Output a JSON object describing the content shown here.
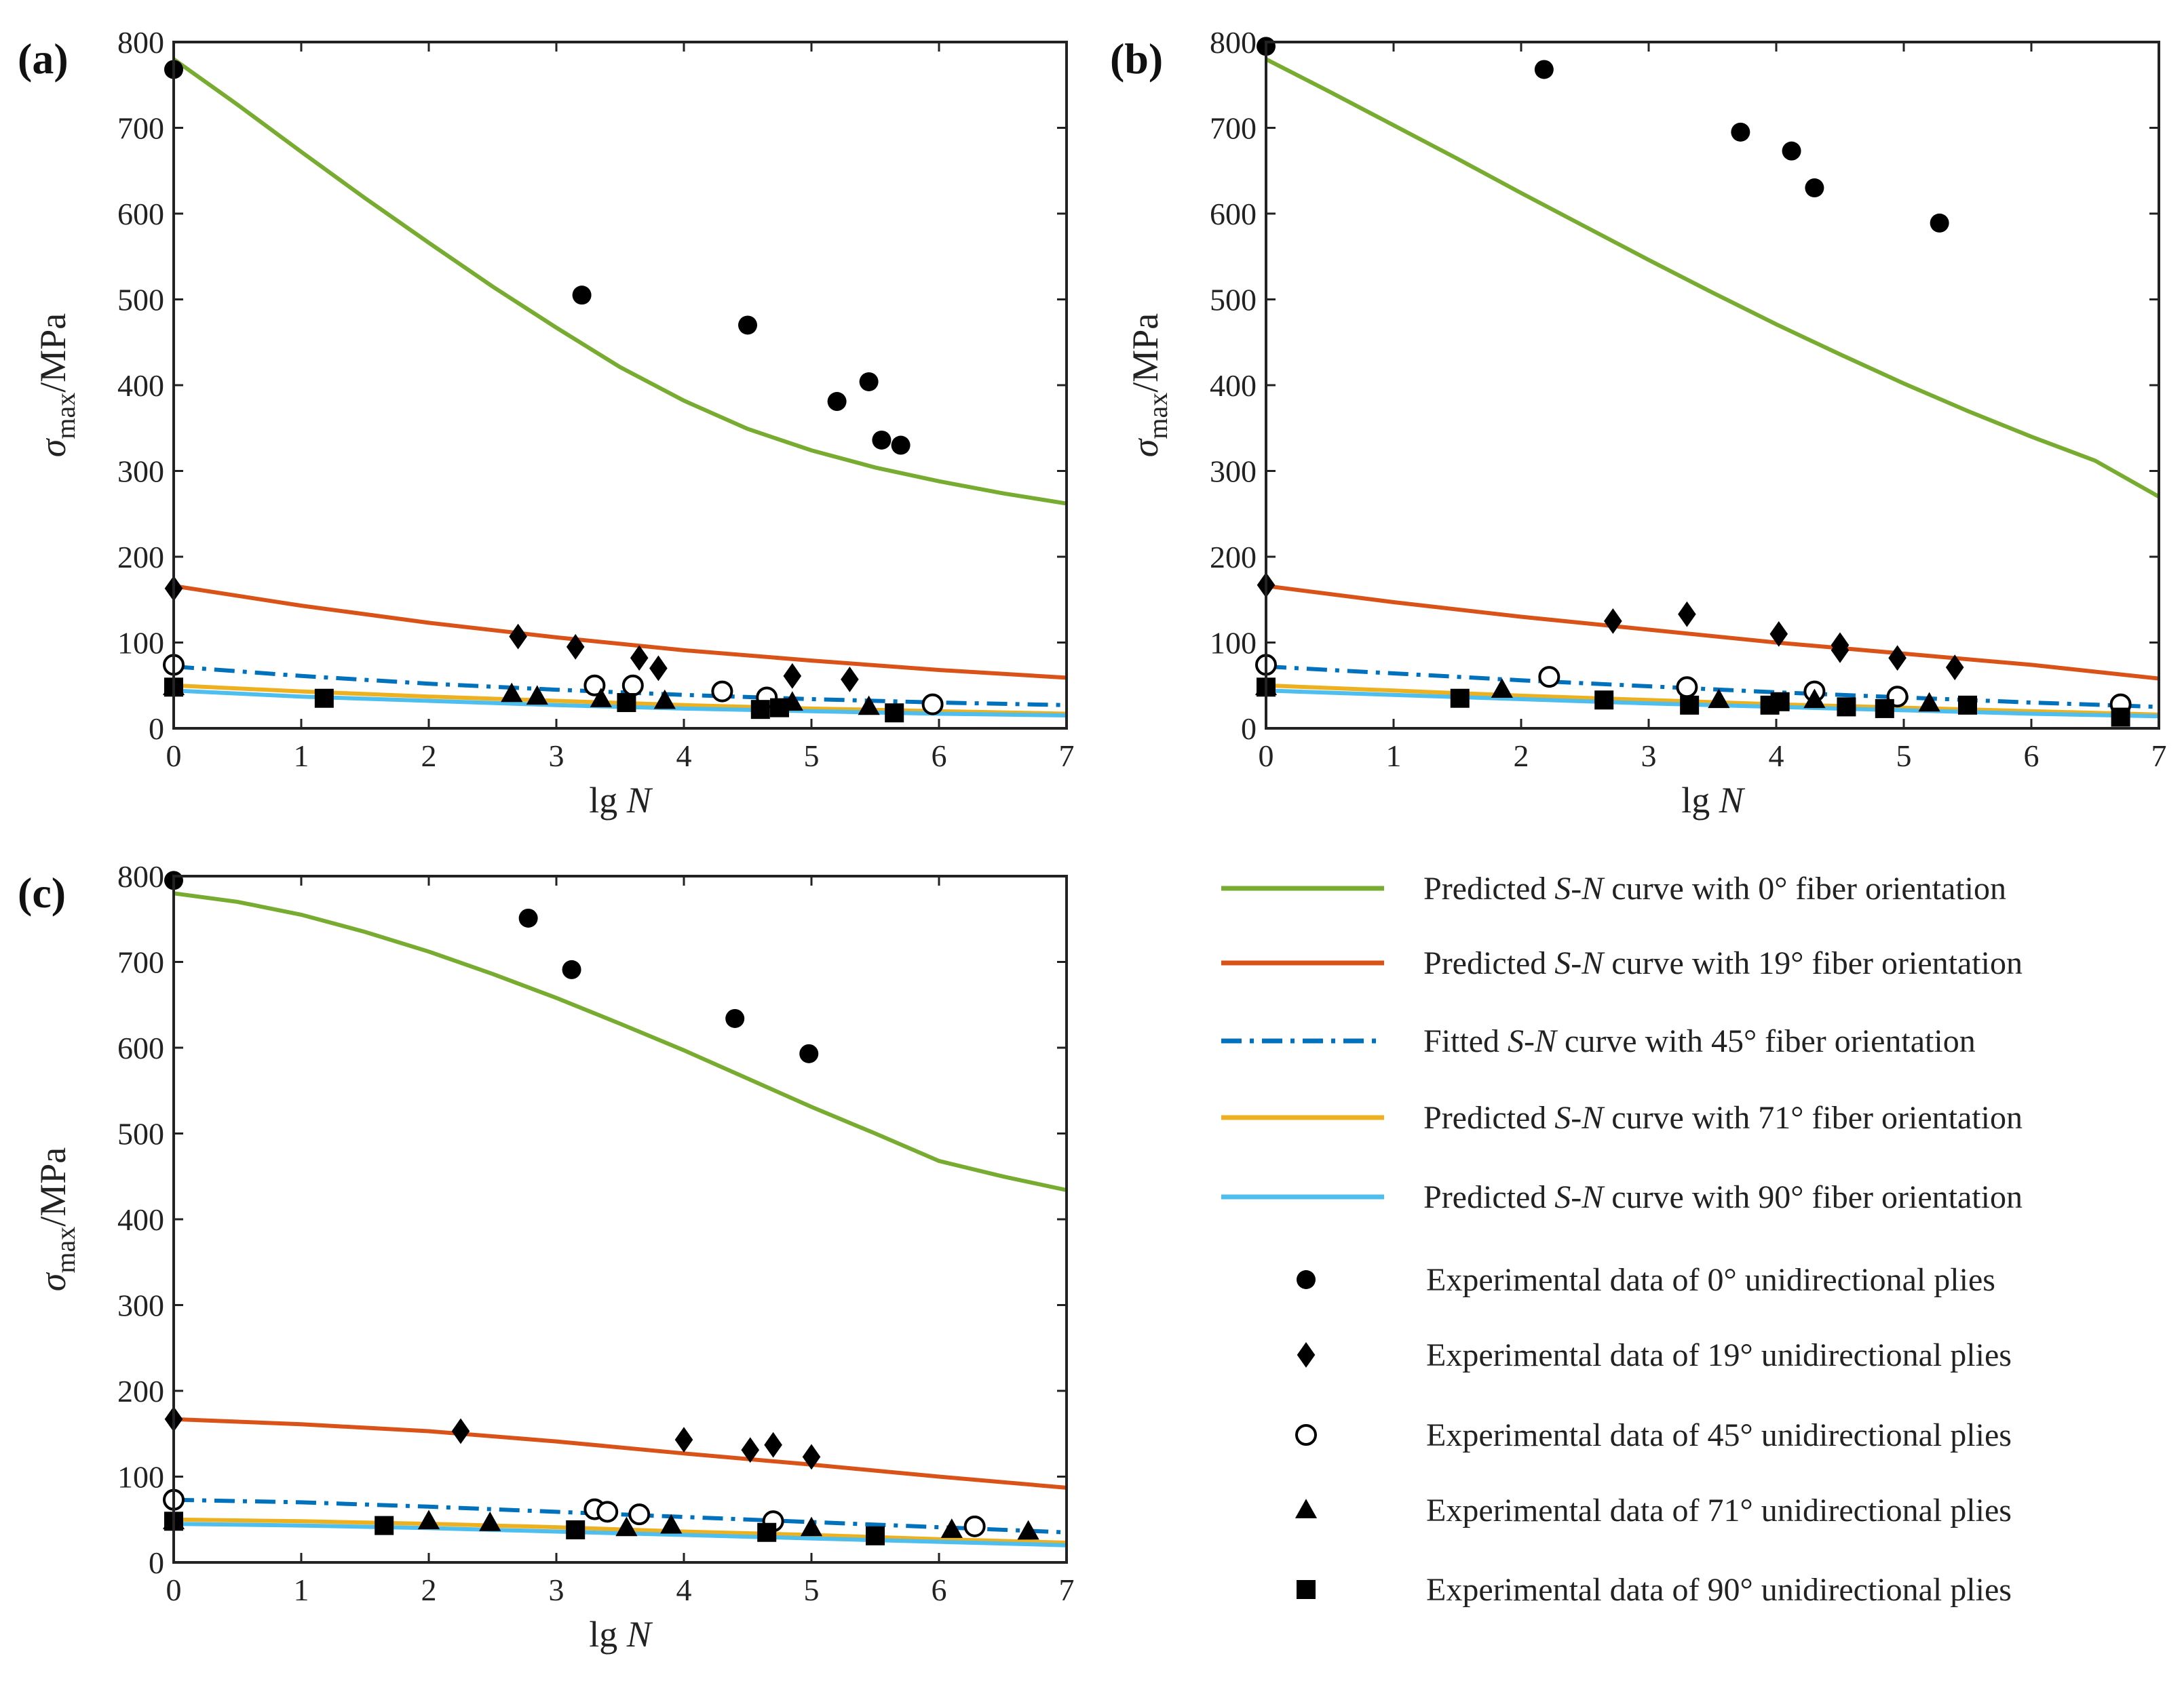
{
  "figure": {
    "legend": [
      {
        "key": "p0",
        "kind": "line",
        "color": "#77ac30",
        "dash": "solid",
        "parts": [
          {
            "t": "Predicted "
          },
          {
            "t": "S",
            "i": true
          },
          {
            "t": "-"
          },
          {
            "t": "N",
            "i": true
          },
          {
            "t": " curve with  0° fiber orientation"
          }
        ]
      },
      {
        "key": "p19",
        "kind": "line",
        "color": "#d95319",
        "dash": "solid",
        "parts": [
          {
            "t": "Predicted "
          },
          {
            "t": "S",
            "i": true
          },
          {
            "t": "-"
          },
          {
            "t": "N",
            "i": true
          },
          {
            "t": " curve with 19° fiber orientation"
          }
        ]
      },
      {
        "key": "p45",
        "kind": "line",
        "color": "#0072bd",
        "dash": "dashdot",
        "parts": [
          {
            "t": "Fitted "
          },
          {
            "t": "S",
            "i": true
          },
          {
            "t": "-"
          },
          {
            "t": "N",
            "i": true
          },
          {
            "t": " curve with 45° fiber orientation"
          }
        ]
      },
      {
        "key": "p71",
        "kind": "line",
        "color": "#edb120",
        "dash": "solid",
        "parts": [
          {
            "t": "Predicted "
          },
          {
            "t": "S",
            "i": true
          },
          {
            "t": "-"
          },
          {
            "t": "N",
            "i": true
          },
          {
            "t": " curve with 71° fiber orientation"
          }
        ]
      },
      {
        "key": "p90",
        "kind": "line",
        "color": "#4dbeee",
        "dash": "solid",
        "parts": [
          {
            "t": "Predicted "
          },
          {
            "t": "S",
            "i": true
          },
          {
            "t": "-"
          },
          {
            "t": "N",
            "i": true
          },
          {
            "t": " curve with 90° fiber orientation"
          }
        ]
      },
      {
        "key": "e0",
        "kind": "marker",
        "marker": "circle",
        "parts": [
          {
            "t": "Experimental data of   0° unidirectional plies"
          }
        ]
      },
      {
        "key": "e19",
        "kind": "marker",
        "marker": "diamond",
        "parts": [
          {
            "t": "Experimental data of  19° unidirectional plies"
          }
        ]
      },
      {
        "key": "e45",
        "kind": "marker",
        "marker": "open-circle",
        "parts": [
          {
            "t": "Experimental data of  45° unidirectional plies"
          }
        ]
      },
      {
        "key": "e71",
        "kind": "marker",
        "marker": "triangle",
        "parts": [
          {
            "t": "Experimental data of  71° unidirectional plies"
          }
        ]
      },
      {
        "key": "e90",
        "kind": "marker",
        "marker": "square",
        "parts": [
          {
            "t": "Experimental data of  90° unidirectional plies"
          }
        ]
      }
    ]
  },
  "chart_data": [
    {
      "panel": "(a)",
      "type": "line",
      "xlabel": {
        "pre": "lg ",
        "italic": "N"
      },
      "ylabel": {
        "sym": "σ",
        "sub": "max",
        "unit": "/MPa"
      },
      "xlim": [
        0,
        7
      ],
      "ylim": [
        0,
        800
      ],
      "xticks": [
        0,
        1,
        2,
        3,
        4,
        5,
        6,
        7
      ],
      "yticks": [
        0,
        100,
        200,
        300,
        400,
        500,
        600,
        700,
        800
      ],
      "curves": [
        {
          "key": "p0",
          "x": [
            0,
            0.5,
            1,
            1.5,
            2,
            2.5,
            3,
            3.5,
            4,
            4.5,
            5,
            5.5,
            6,
            6.5,
            7
          ],
          "y": [
            780,
            727,
            672,
            618,
            566,
            515,
            467,
            421,
            382,
            349,
            324,
            304,
            288,
            274,
            262
          ]
        },
        {
          "key": "p19",
          "x": [
            0,
            1,
            2,
            3,
            4,
            5,
            6,
            7
          ],
          "y": [
            166,
            143,
            123,
            106,
            91,
            79,
            68,
            59
          ]
        },
        {
          "key": "p45",
          "x": [
            0,
            1,
            2,
            3,
            4,
            5,
            6,
            7
          ],
          "y": [
            72,
            61,
            52,
            45,
            39,
            34,
            30,
            27
          ]
        },
        {
          "key": "p71",
          "x": [
            0,
            1,
            2,
            3,
            4,
            5,
            6,
            7
          ],
          "y": [
            50,
            43,
            37,
            32,
            27,
            23,
            20,
            17
          ]
        },
        {
          "key": "p90",
          "x": [
            0,
            1,
            2,
            3,
            4,
            5,
            6,
            7
          ],
          "y": [
            44,
            37,
            32,
            27,
            23,
            20,
            17,
            15
          ]
        }
      ],
      "points": [
        {
          "key": "e0",
          "x": [
            0,
            3.2,
            4.5,
            5.2,
            5.45,
            5.55,
            5.7
          ],
          "y": [
            768,
            505,
            470,
            381,
            404,
            336,
            330
          ]
        },
        {
          "key": "e19",
          "x": [
            0,
            2.7,
            3.15,
            3.65,
            3.8,
            4.85,
            5.3
          ],
          "y": [
            163,
            107,
            95,
            82,
            70,
            61,
            57
          ]
        },
        {
          "key": "e45",
          "x": [
            0,
            3.3,
            3.6,
            4.3,
            4.65,
            5.95
          ],
          "y": [
            74,
            50,
            50,
            43,
            36,
            28
          ]
        },
        {
          "key": "e71",
          "x": [
            0,
            2.65,
            2.85,
            3.35,
            3.85,
            4.85,
            5.45
          ],
          "y": [
            48,
            40,
            37,
            34,
            32,
            30,
            25
          ]
        },
        {
          "key": "e90",
          "x": [
            0,
            1.18,
            3.55,
            4.6,
            4.75,
            5.65
          ],
          "y": [
            48,
            35,
            30,
            22,
            24,
            18
          ]
        }
      ]
    },
    {
      "panel": "(b)",
      "type": "line",
      "xlabel": {
        "pre": "lg ",
        "italic": "N"
      },
      "ylabel": {
        "sym": "σ",
        "sub": "max",
        "unit": "/MPa"
      },
      "xlim": [
        0,
        7
      ],
      "ylim": [
        0,
        800
      ],
      "xticks": [
        0,
        1,
        2,
        3,
        4,
        5,
        6,
        7
      ],
      "yticks": [
        0,
        100,
        200,
        300,
        400,
        500,
        600,
        700,
        800
      ],
      "curves": [
        {
          "key": "p0",
          "x": [
            0,
            0.5,
            1,
            1.5,
            2,
            2.5,
            3,
            3.5,
            4,
            4.5,
            5,
            5.5,
            6,
            6.5,
            7
          ],
          "y": [
            780,
            742,
            703,
            664,
            624,
            585,
            546,
            508,
            471,
            436,
            402,
            370,
            340,
            312,
            270
          ]
        },
        {
          "key": "p19",
          "x": [
            0,
            1,
            2,
            3,
            4,
            5,
            6,
            7
          ],
          "y": [
            166,
            147,
            130,
            115,
            100,
            87,
            74,
            58
          ]
        },
        {
          "key": "p45",
          "x": [
            0,
            1,
            2,
            3,
            4,
            5,
            6,
            7
          ],
          "y": [
            72,
            64,
            56,
            49,
            42,
            36,
            30,
            25
          ]
        },
        {
          "key": "p71",
          "x": [
            0,
            1,
            2,
            3,
            4,
            5,
            6,
            7
          ],
          "y": [
            50,
            44,
            38,
            33,
            28,
            24,
            20,
            16
          ]
        },
        {
          "key": "p90",
          "x": [
            0,
            1,
            2,
            3,
            4,
            5,
            6,
            7
          ],
          "y": [
            44,
            39,
            34,
            29,
            25,
            21,
            17,
            14
          ]
        }
      ],
      "points": [
        {
          "key": "e0",
          "x": [
            0,
            2.18,
            3.72,
            4.12,
            4.3,
            5.28
          ],
          "y": [
            795,
            768,
            695,
            673,
            630,
            589
          ]
        },
        {
          "key": "e19",
          "x": [
            0,
            2.72,
            3.3,
            4.02,
            4.5,
            4.5,
            4.95,
            5.4
          ],
          "y": [
            167,
            125,
            133,
            110,
            97,
            91,
            82,
            71
          ]
        },
        {
          "key": "e45",
          "x": [
            0,
            2.22,
            3.3,
            4.3,
            4.95,
            6.7
          ],
          "y": [
            74,
            60,
            48,
            43,
            37,
            28
          ]
        },
        {
          "key": "e71",
          "x": [
            0,
            1.85,
            3.55,
            4.3,
            5.2
          ],
          "y": [
            48,
            45,
            33,
            33,
            29
          ]
        },
        {
          "key": "e90",
          "x": [
            0,
            1.52,
            2.65,
            3.32,
            3.95,
            4.03,
            4.55,
            4.85,
            5.5,
            6.7
          ],
          "y": [
            48,
            35,
            33,
            27,
            27,
            31,
            25,
            23,
            27,
            13
          ]
        }
      ]
    },
    {
      "panel": "(c)",
      "type": "line",
      "xlabel": {
        "pre": "lg ",
        "italic": "N"
      },
      "ylabel": {
        "sym": "σ",
        "sub": "max",
        "unit": "/MPa"
      },
      "xlim": [
        0,
        7
      ],
      "ylim": [
        0,
        800
      ],
      "xticks": [
        0,
        1,
        2,
        3,
        4,
        5,
        6,
        7
      ],
      "yticks": [
        0,
        100,
        200,
        300,
        400,
        500,
        600,
        700,
        800
      ],
      "curves": [
        {
          "key": "p0",
          "x": [
            0,
            0.5,
            1,
            1.5,
            2,
            2.5,
            3,
            3.5,
            4,
            4.5,
            5,
            5.5,
            6,
            6.5,
            7
          ],
          "y": [
            780,
            770,
            755,
            735,
            712,
            686,
            658,
            628,
            597,
            564,
            531,
            500,
            468,
            450,
            434
          ]
        },
        {
          "key": "p19",
          "x": [
            0,
            1,
            2,
            3,
            4,
            5,
            6,
            7
          ],
          "y": [
            167,
            161,
            153,
            141,
            127,
            114,
            100,
            87
          ]
        },
        {
          "key": "p45",
          "x": [
            0,
            1,
            2,
            3,
            4,
            5,
            6,
            7
          ],
          "y": [
            73,
            70,
            65,
            59,
            53,
            47,
            41,
            35
          ]
        },
        {
          "key": "p71",
          "x": [
            0,
            1,
            2,
            3,
            4,
            5,
            6,
            7
          ],
          "y": [
            50,
            48,
            45,
            41,
            36,
            32,
            27,
            23
          ]
        },
        {
          "key": "p90",
          "x": [
            0,
            1,
            2,
            3,
            4,
            5,
            6,
            7
          ],
          "y": [
            45,
            43,
            40,
            36,
            32,
            28,
            24,
            20
          ]
        }
      ],
      "points": [
        {
          "key": "e0",
          "x": [
            0,
            2.78,
            3.12,
            4.4,
            4.98
          ],
          "y": [
            795,
            751,
            691,
            634,
            593
          ]
        },
        {
          "key": "e19",
          "x": [
            0,
            2.25,
            4,
            4.52,
            4.7,
            5
          ],
          "y": [
            167,
            153,
            143,
            131,
            137,
            123
          ]
        },
        {
          "key": "e45",
          "x": [
            0,
            3.3,
            3.4,
            3.65,
            4.7,
            6.28
          ],
          "y": [
            73,
            62,
            59,
            56,
            48,
            42
          ]
        },
        {
          "key": "e71",
          "x": [
            0,
            2,
            2.48,
            3.55,
            3.9,
            5,
            6.1,
            6.7
          ],
          "y": [
            48,
            48,
            46,
            40,
            43,
            40,
            38,
            36
          ]
        },
        {
          "key": "e90",
          "x": [
            0,
            1.65,
            3.15,
            4.65,
            5.5
          ],
          "y": [
            48,
            43,
            38,
            35,
            31
          ]
        }
      ]
    }
  ]
}
